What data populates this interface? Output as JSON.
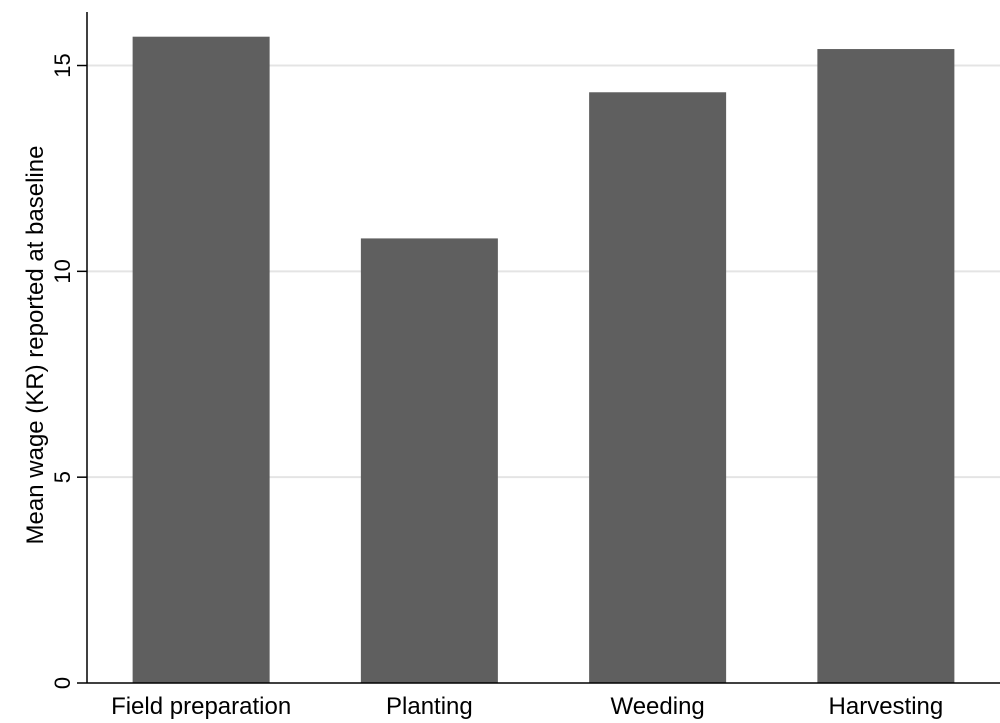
{
  "chart_data": {
    "type": "bar",
    "categories": [
      "Field preparation",
      "Planting",
      "Weeding",
      "Harvesting"
    ],
    "values": [
      15.7,
      10.8,
      14.35,
      15.4
    ],
    "title": "",
    "xlabel": "",
    "ylabel": "Mean wage (KR) reported at baseline",
    "ylim": [
      0,
      16.3
    ],
    "yticks": [
      0,
      5,
      10,
      15
    ],
    "ytick_labels": [
      "0",
      "5",
      "10",
      "15"
    ],
    "grid": true,
    "legend": "none",
    "colors": {
      "bar": "#5f5f5f",
      "grid": "#e4e4e4",
      "axis": "#000000"
    }
  }
}
